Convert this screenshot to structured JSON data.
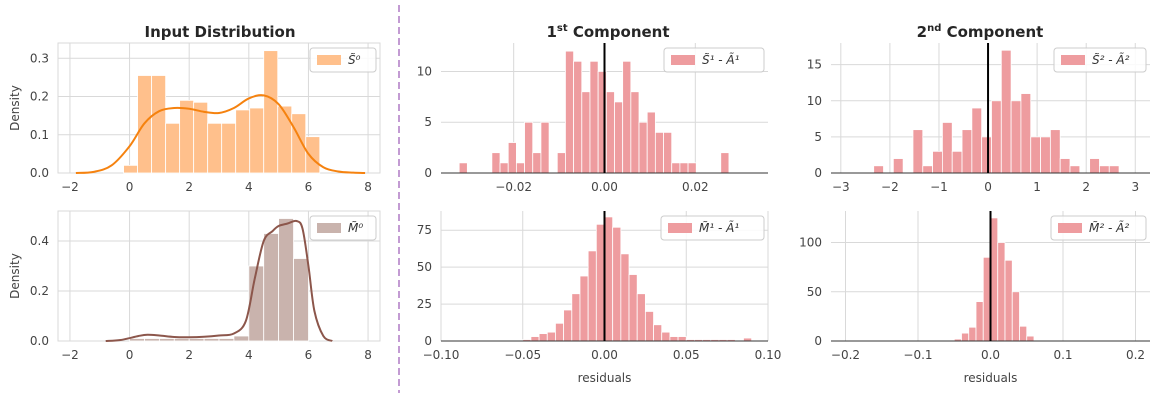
{
  "colors": {
    "input_top_fill": "#ffc08c",
    "input_top_line": "#f5820f",
    "input_bottom_fill": "#c9b3ad",
    "input_bottom_line": "#8c564b",
    "residual_fill": "#ee9c9f",
    "zero_line": "#000000",
    "grid": "#d9d9d9",
    "divider": "#c39bd3"
  },
  "titles": {
    "input": "Input Distribution",
    "comp1_sup": "st",
    "comp1_num": "1",
    "comp1_rest": " Component",
    "comp2_sup": "nd",
    "comp2_num": "2",
    "comp2_rest": " Component"
  },
  "chart_data": [
    {
      "id": "input_top",
      "type": "bar",
      "column": "Input Distribution",
      "row": 1,
      "ylabel": "Density",
      "xlabel": "",
      "xlim": [
        -2.4,
        8.4
      ],
      "ylim": [
        0,
        0.34
      ],
      "xticks": [
        -2,
        0,
        2,
        4,
        6,
        8
      ],
      "yticks": [
        0,
        0.1,
        0.2,
        0.3
      ],
      "xtick_labels": [
        "−2",
        "0",
        "2",
        "4",
        "6",
        "8"
      ],
      "ytick_labels": [
        "0.0",
        "0.1",
        "0.2",
        "0.3"
      ],
      "legend": "S̃⁰",
      "legend_position": "top-right",
      "grid": true,
      "bin_edges": [
        -0.2,
        0.27,
        0.74,
        1.21,
        1.68,
        2.15,
        2.62,
        3.09,
        3.56,
        4.03,
        4.5,
        4.97,
        5.44,
        5.91,
        6.38
      ],
      "values": [
        0.02,
        0.255,
        0.255,
        0.13,
        0.19,
        0.185,
        0.13,
        0.13,
        0.165,
        0.17,
        0.32,
        0.175,
        0.155,
        0.095
      ],
      "kde": {
        "x": [
          -1.8,
          -1.2,
          -0.6,
          0,
          0.5,
          1,
          1.5,
          2,
          2.5,
          3,
          3.5,
          4,
          4.5,
          5,
          5.5,
          6,
          6.5,
          7,
          7.5,
          7.9
        ],
        "y": [
          0.0,
          0.003,
          0.02,
          0.07,
          0.13,
          0.162,
          0.17,
          0.168,
          0.16,
          0.157,
          0.17,
          0.195,
          0.203,
          0.18,
          0.12,
          0.05,
          0.015,
          0.004,
          0.001,
          0.0
        ]
      }
    },
    {
      "id": "input_bottom",
      "type": "bar",
      "column": "Input Distribution",
      "row": 2,
      "ylabel": "Density",
      "xlabel": "",
      "xlim": [
        -2.4,
        8.4
      ],
      "ylim": [
        0,
        0.52
      ],
      "xticks": [
        -2,
        0,
        2,
        4,
        6,
        8
      ],
      "yticks": [
        0,
        0.2,
        0.4
      ],
      "xtick_labels": [
        "−2",
        "0",
        "2",
        "4",
        "6",
        "8"
      ],
      "ytick_labels": [
        "0.0",
        "0.2",
        "0.4"
      ],
      "legend": "M̃⁰",
      "legend_position": "top-right",
      "grid": true,
      "bin_edges": [
        0,
        0.5,
        1,
        1.5,
        2,
        2.5,
        3,
        3.5,
        4,
        4.5,
        5,
        5.5,
        6
      ],
      "values": [
        0.01,
        0.01,
        0.01,
        0.01,
        0.01,
        0.01,
        0.01,
        0.02,
        0.3,
        0.43,
        0.49,
        0.33
      ],
      "kde": {
        "x": [
          -0.8,
          -0.3,
          0.3,
          0.6,
          1.0,
          1.5,
          2.0,
          2.5,
          3.0,
          3.5,
          3.9,
          4.2,
          4.5,
          4.8,
          5.0,
          5.3,
          5.6,
          5.8,
          6.0,
          6.2,
          6.5,
          6.8
        ],
        "y": [
          0.0,
          0.004,
          0.02,
          0.025,
          0.022,
          0.016,
          0.015,
          0.017,
          0.022,
          0.03,
          0.08,
          0.25,
          0.4,
          0.44,
          0.46,
          0.47,
          0.48,
          0.45,
          0.3,
          0.12,
          0.02,
          0.0
        ]
      }
    },
    {
      "id": "comp1_top",
      "type": "bar",
      "column": "1st Component",
      "row": 1,
      "xlabel": "",
      "ylabel": "",
      "xlim": [
        -0.036,
        0.036
      ],
      "ylim": [
        0,
        12.8
      ],
      "xticks": [
        -0.02,
        0,
        0.02
      ],
      "yticks": [
        0,
        5,
        10
      ],
      "xtick_labels": [
        "−0.02",
        "0.00",
        "0.02"
      ],
      "ytick_labels": [
        "0",
        "5",
        "10"
      ],
      "legend": "S̃¹ - Ã¹",
      "legend_position": "top-right",
      "grid": true,
      "zero_line": 0,
      "bin_edges": [
        -0.032,
        -0.0302,
        -0.0284,
        -0.0266,
        -0.0248,
        -0.023,
        -0.0212,
        -0.0194,
        -0.0176,
        -0.0158,
        -0.014,
        -0.0122,
        -0.0104,
        -0.0086,
        -0.0068,
        -0.005,
        -0.0032,
        -0.0014,
        0.0004,
        0.0022,
        0.004,
        0.0058,
        0.0076,
        0.0094,
        0.0112,
        0.013,
        0.0148,
        0.0166,
        0.0184,
        0.0202,
        0.022,
        0.0238,
        0.0256,
        0.0274
      ],
      "values": [
        1,
        0,
        0,
        0,
        2,
        1,
        3,
        1,
        5,
        2,
        5,
        0,
        2,
        12,
        11,
        8,
        11,
        10,
        8,
        7,
        11,
        8,
        5,
        6,
        4,
        4,
        1,
        1,
        1,
        0,
        0,
        0,
        2
      ]
    },
    {
      "id": "comp1_bottom",
      "type": "bar",
      "column": "1st Component",
      "row": 2,
      "xlabel": "residuals",
      "ylabel": "",
      "xlim": [
        -0.1,
        0.1
      ],
      "ylim": [
        0,
        88
      ],
      "xticks": [
        -0.1,
        -0.05,
        0,
        0.05,
        0.1
      ],
      "yticks": [
        0,
        25,
        50,
        75
      ],
      "xtick_labels": [
        "−0.10",
        "−0.05",
        "0.00",
        "0.05",
        "0.10"
      ],
      "ytick_labels": [
        "0",
        "25",
        "50",
        "75"
      ],
      "legend": "M̃¹ - Ã¹",
      "legend_position": "top-right",
      "grid": true,
      "zero_line": 0,
      "bin_edges": [
        -0.05,
        -0.045,
        -0.04,
        -0.035,
        -0.03,
        -0.025,
        -0.02,
        -0.015,
        -0.01,
        -0.005,
        0,
        0.005,
        0.01,
        0.015,
        0.02,
        0.025,
        0.03,
        0.035,
        0.04,
        0.045,
        0.05,
        0.055,
        0.06,
        0.065,
        0.07,
        0.075,
        0.08,
        0.085,
        0.09
      ],
      "values": [
        1,
        3,
        5,
        6,
        12,
        21,
        32,
        44,
        61,
        79,
        84,
        77,
        59,
        45,
        32,
        20,
        11,
        6,
        3,
        3,
        1,
        1,
        1,
        1,
        1,
        1,
        0,
        2
      ]
    },
    {
      "id": "comp2_top",
      "type": "bar",
      "column": "2nd Component",
      "row": 1,
      "xlabel": "",
      "ylabel": "",
      "xlim": [
        -3.2,
        3.3
      ],
      "ylim": [
        0,
        18
      ],
      "xticks": [
        -3,
        -2,
        -1,
        0,
        1,
        2,
        3
      ],
      "yticks": [
        0,
        5,
        10,
        15
      ],
      "xtick_labels": [
        "−3",
        "−2",
        "−1",
        "0",
        "1",
        "2",
        "3"
      ],
      "ytick_labels": [
        "0",
        "5",
        "10",
        "15"
      ],
      "legend": "S̃² - Ã²",
      "legend_position": "top-right",
      "grid": true,
      "zero_line": 0,
      "bin_edges": [
        -2.33,
        -2.13,
        -1.93,
        -1.73,
        -1.53,
        -1.33,
        -1.13,
        -0.93,
        -0.73,
        -0.53,
        -0.33,
        -0.13,
        0.07,
        0.27,
        0.47,
        0.67,
        0.87,
        1.07,
        1.27,
        1.47,
        1.67,
        1.87,
        2.07,
        2.27,
        2.47,
        2.67
      ],
      "values": [
        1,
        0,
        2,
        0,
        6,
        1,
        3,
        7,
        3,
        6,
        9,
        5,
        10,
        17,
        10,
        11,
        5,
        5,
        6,
        2,
        1,
        0,
        2,
        1,
        1
      ]
    },
    {
      "id": "comp2_bottom",
      "type": "bar",
      "column": "2nd Component",
      "row": 2,
      "xlabel": "residuals",
      "ylabel": "",
      "xlim": [
        -0.22,
        0.22
      ],
      "ylim": [
        0,
        132
      ],
      "xticks": [
        -0.2,
        -0.1,
        0,
        0.1,
        0.2
      ],
      "yticks": [
        0,
        50,
        100
      ],
      "xtick_labels": [
        "−0.2",
        "−0.1",
        "0.0",
        "0.1",
        "0.2"
      ],
      "ytick_labels": [
        "0",
        "50",
        "100"
      ],
      "legend": "M̃² - Ã²",
      "legend_position": "top-right",
      "grid": true,
      "zero_line": 0,
      "bin_edges": [
        -0.05,
        -0.04,
        -0.03,
        -0.02,
        -0.01,
        0,
        0.01,
        0.02,
        0.03,
        0.04,
        0.05,
        0.06
      ],
      "values": [
        2,
        8,
        14,
        40,
        85,
        125,
        100,
        82,
        50,
        15,
        5
      ]
    }
  ]
}
